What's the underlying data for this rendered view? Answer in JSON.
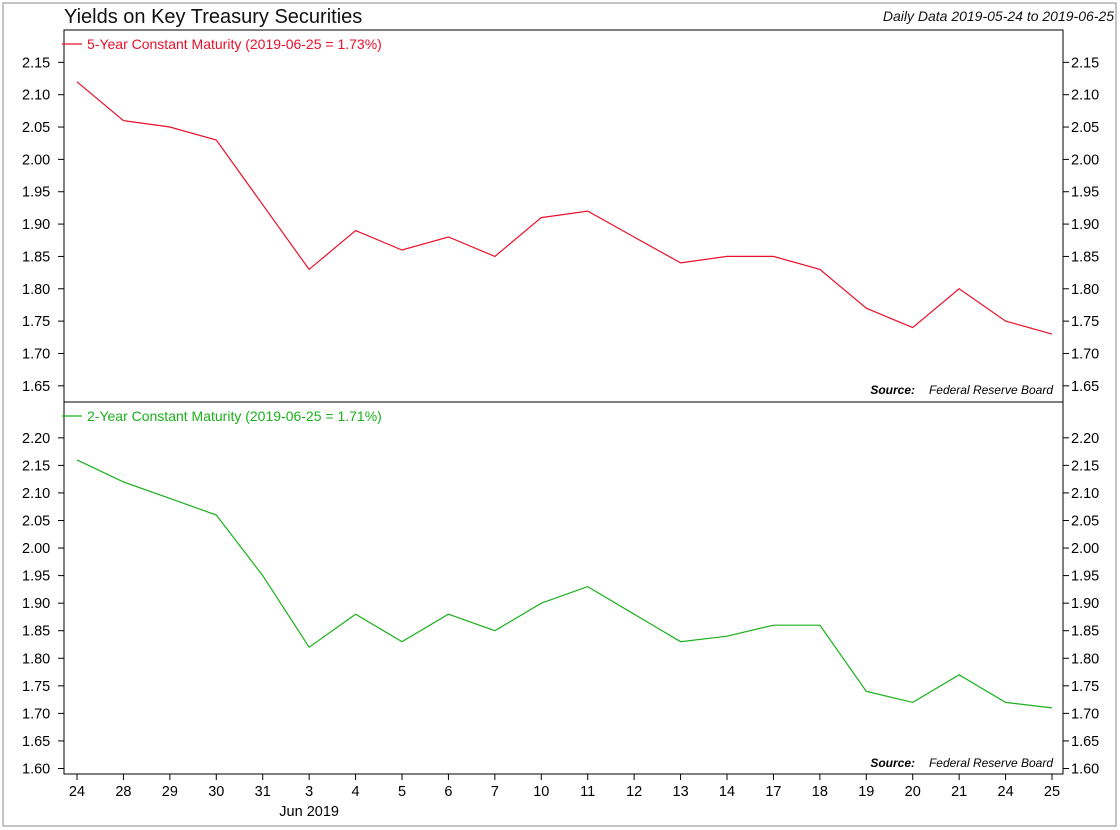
{
  "title": "Yields on Key Treasury Securities",
  "subtitle": "Daily Data 2019-05-24 to 2019-06-25",
  "x_tick_labels": [
    "24",
    "28",
    "29",
    "30",
    "31",
    "3",
    "4",
    "5",
    "6",
    "7",
    "10",
    "11",
    "12",
    "13",
    "14",
    "17",
    "18",
    "19",
    "20",
    "21",
    "24",
    "25"
  ],
  "x_month_label": "Jun 2019",
  "chart_data": [
    {
      "type": "line",
      "legend": "5-Year Constant Maturity (2019-06-25 = 1.73%)",
      "color": "#e8102a",
      "source_label": "Source:",
      "source_value": "Federal Reserve Board",
      "yticks": [
        "1.65",
        "1.70",
        "1.75",
        "1.80",
        "1.85",
        "1.90",
        "1.95",
        "2.00",
        "2.05",
        "2.10",
        "2.15"
      ],
      "ylim": [
        1.625,
        2.2
      ],
      "x": [
        "2019-05-24",
        "2019-05-28",
        "2019-05-29",
        "2019-05-30",
        "2019-05-31",
        "2019-06-03",
        "2019-06-04",
        "2019-06-05",
        "2019-06-06",
        "2019-06-07",
        "2019-06-10",
        "2019-06-11",
        "2019-06-12",
        "2019-06-13",
        "2019-06-14",
        "2019-06-17",
        "2019-06-18",
        "2019-06-19",
        "2019-06-20",
        "2019-06-21",
        "2019-06-24",
        "2019-06-25"
      ],
      "values": [
        2.12,
        2.06,
        2.05,
        2.03,
        1.93,
        1.83,
        1.89,
        1.86,
        1.88,
        1.85,
        1.91,
        1.92,
        1.88,
        1.84,
        1.85,
        1.85,
        1.83,
        1.77,
        1.74,
        1.8,
        1.75,
        1.73
      ]
    },
    {
      "type": "line",
      "legend": "2-Year Constant Maturity (2019-06-25 = 1.71%)",
      "color": "#1bb01b",
      "source_label": "Source:",
      "source_value": "Federal Reserve Board",
      "yticks": [
        "1.60",
        "1.65",
        "1.70",
        "1.75",
        "1.80",
        "1.85",
        "1.90",
        "1.95",
        "2.00",
        "2.05",
        "2.10",
        "2.15",
        "2.20"
      ],
      "ylim": [
        1.59,
        2.265
      ],
      "x": [
        "2019-05-24",
        "2019-05-28",
        "2019-05-29",
        "2019-05-30",
        "2019-05-31",
        "2019-06-03",
        "2019-06-04",
        "2019-06-05",
        "2019-06-06",
        "2019-06-07",
        "2019-06-10",
        "2019-06-11",
        "2019-06-12",
        "2019-06-13",
        "2019-06-14",
        "2019-06-17",
        "2019-06-18",
        "2019-06-19",
        "2019-06-20",
        "2019-06-21",
        "2019-06-24",
        "2019-06-25"
      ],
      "values": [
        2.16,
        2.12,
        2.09,
        2.06,
        1.95,
        1.82,
        1.88,
        1.83,
        1.88,
        1.85,
        1.9,
        1.93,
        1.88,
        1.83,
        1.84,
        1.86,
        1.86,
        1.74,
        1.72,
        1.77,
        1.72,
        1.71
      ]
    }
  ]
}
